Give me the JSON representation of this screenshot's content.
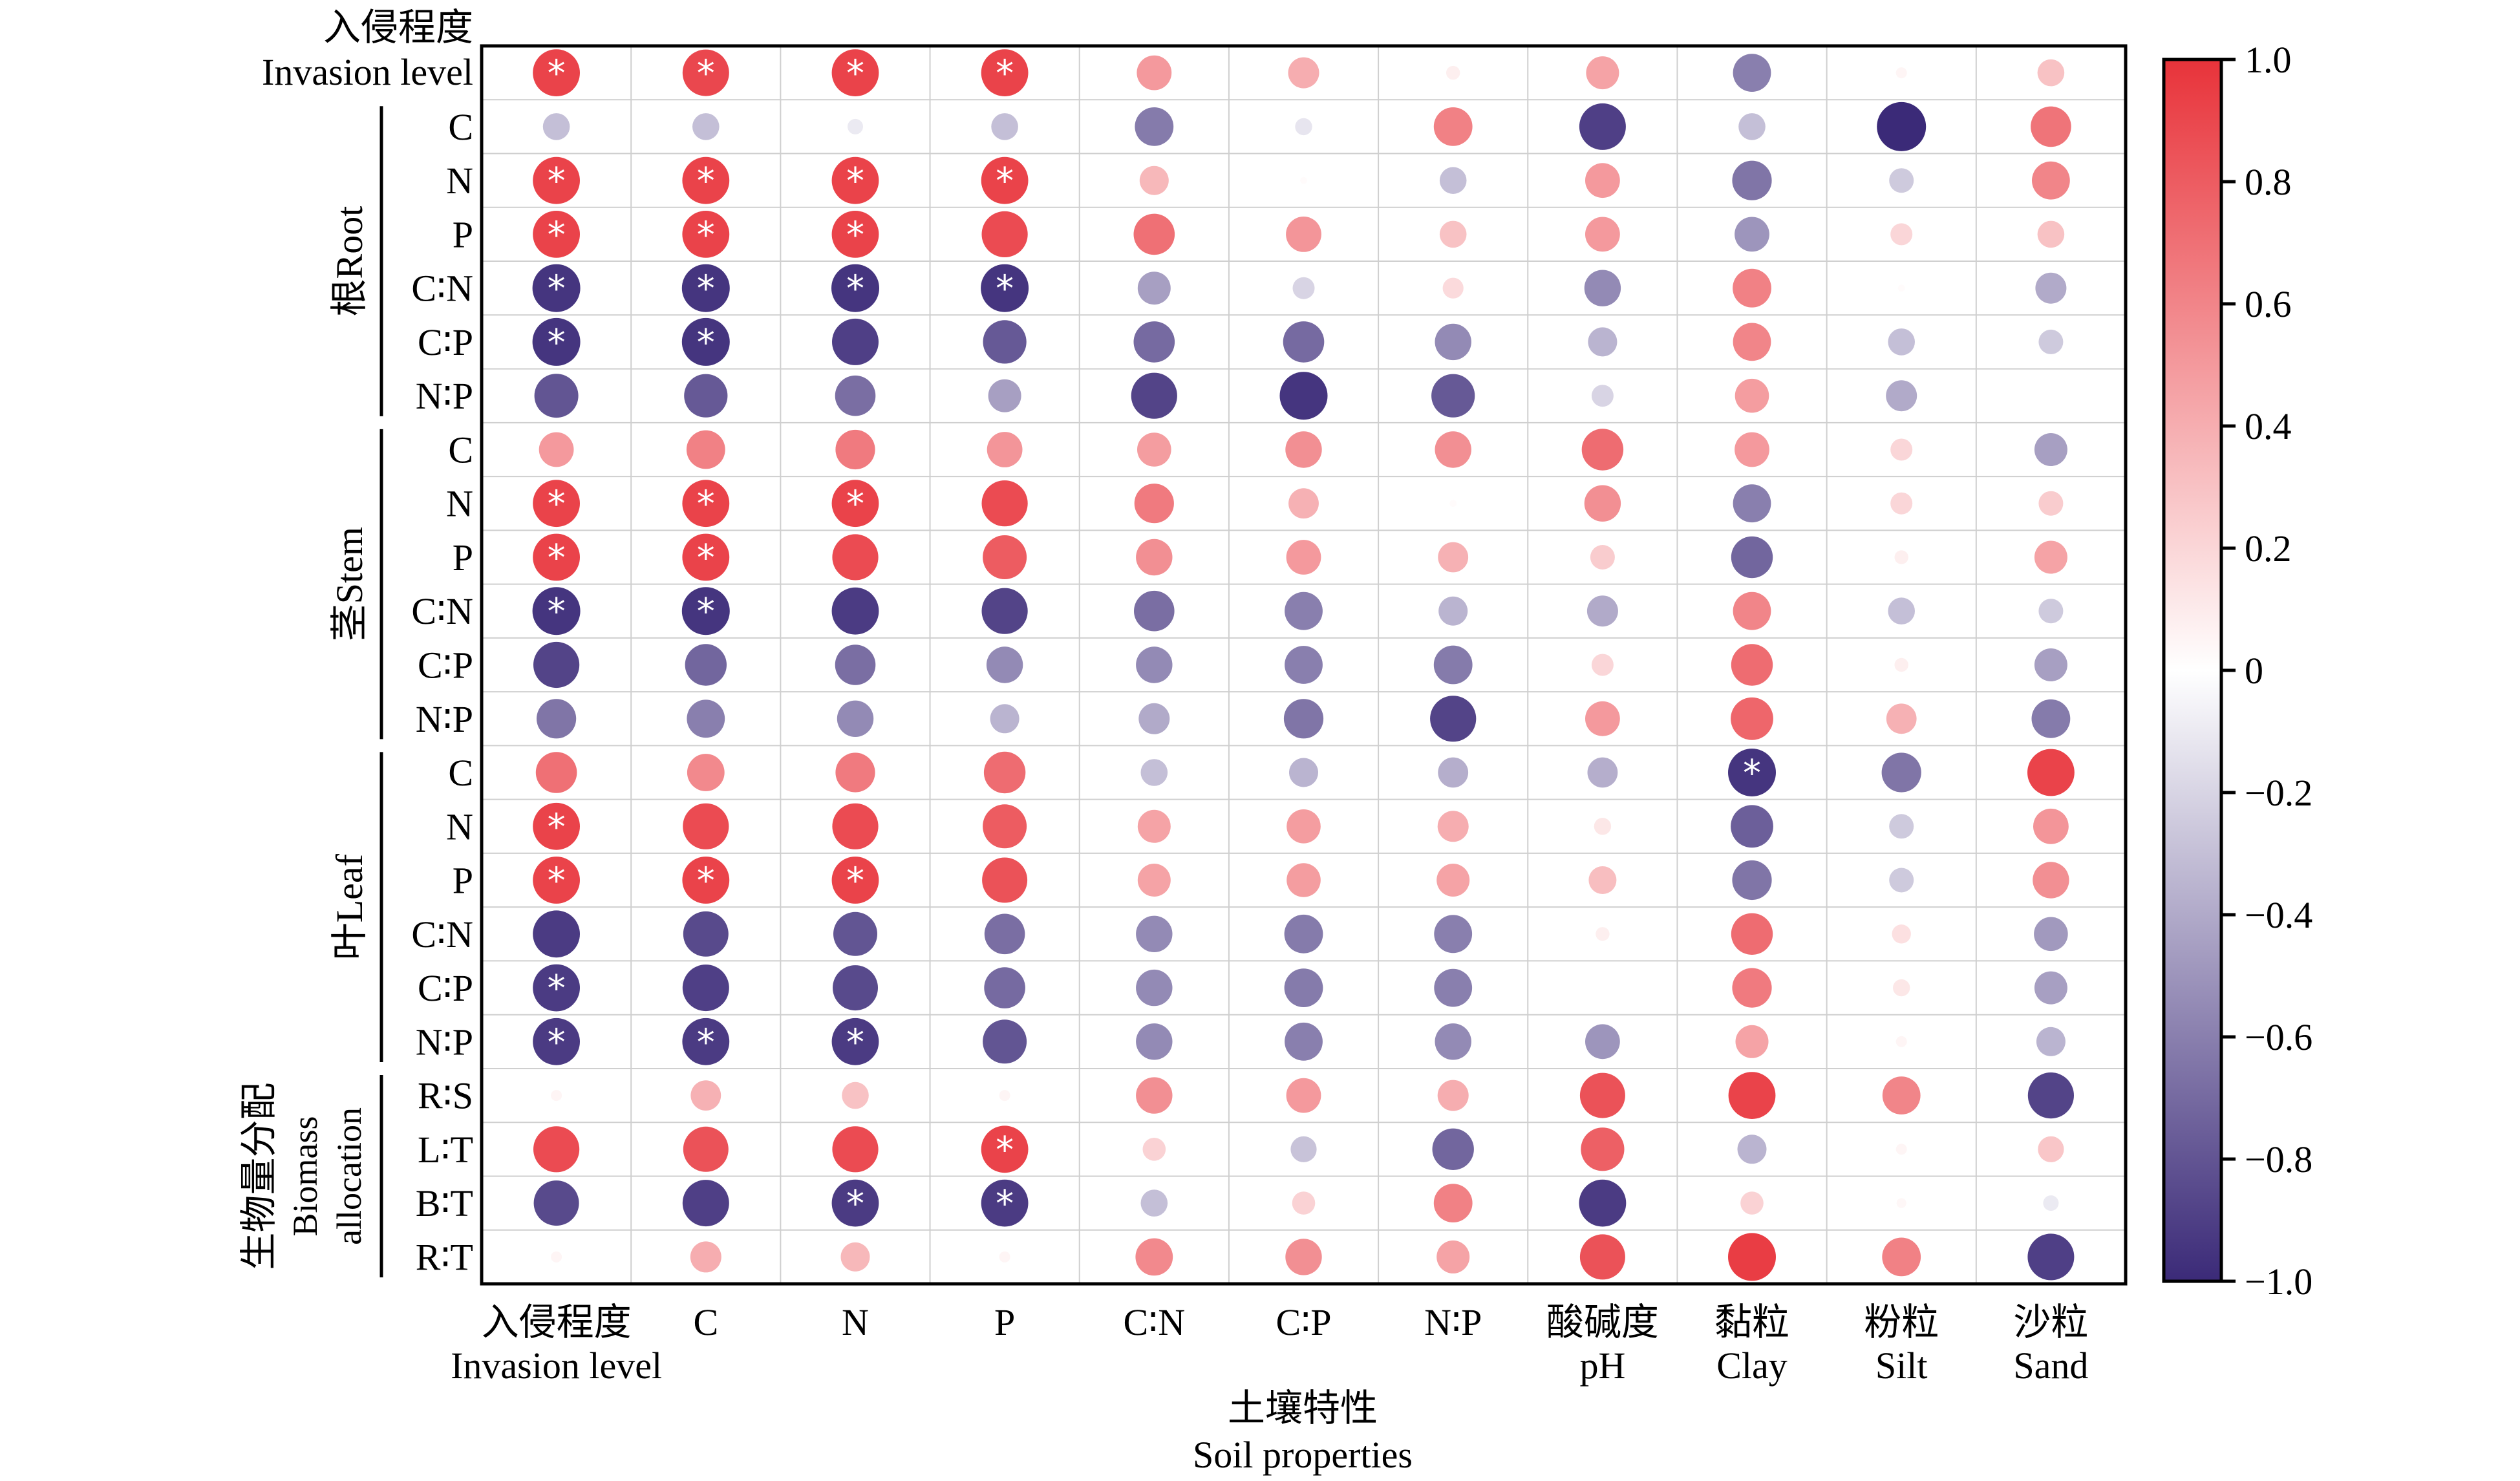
{
  "chart_data": {
    "type": "heatmap",
    "x_title_cn": "土壤特性",
    "x_title_en": "Soil properties",
    "columns": [
      {
        "cn": "入侵程度",
        "en": "Invasion level"
      },
      {
        "cn": "C",
        "en": ""
      },
      {
        "cn": "N",
        "en": ""
      },
      {
        "cn": "P",
        "en": ""
      },
      {
        "cn": "C∶N",
        "en": ""
      },
      {
        "cn": "C∶P",
        "en": ""
      },
      {
        "cn": "N∶P",
        "en": ""
      },
      {
        "cn": "酸碱度",
        "en": "pH"
      },
      {
        "cn": "黏粒",
        "en": "Clay"
      },
      {
        "cn": "粉粒",
        "en": "Silt"
      },
      {
        "cn": "沙粒",
        "en": "Sand"
      }
    ],
    "top_row": {
      "cn": "入侵程度",
      "en": "Invasion level"
    },
    "groups": [
      {
        "cn": "根",
        "en": "Root",
        "rows": [
          "C",
          "N",
          "P",
          "C∶N",
          "C∶P",
          "N∶P"
        ]
      },
      {
        "cn": "茎",
        "en": "Stem",
        "rows": [
          "C",
          "N",
          "P",
          "C∶N",
          "C∶P",
          "N∶P"
        ]
      },
      {
        "cn": "叶",
        "en": "Leaf",
        "rows": [
          "C",
          "N",
          "P",
          "C∶N",
          "C∶P",
          "N∶P"
        ]
      },
      {
        "cn": "生物量分配",
        "en1": "Biomass",
        "en2": "allocation",
        "rows": [
          "R∶S",
          "L∶T",
          "B∶T",
          "R∶T"
        ]
      }
    ],
    "values": [
      [
        0.92,
        0.9,
        0.92,
        0.92,
        0.5,
        0.4,
        0.08,
        0.45,
        -0.6,
        0.05,
        0.3
      ],
      [
        -0.3,
        -0.3,
        -0.1,
        -0.3,
        -0.62,
        -0.12,
        0.62,
        -0.9,
        -0.3,
        -1.0,
        0.68
      ],
      [
        0.92,
        0.92,
        0.92,
        0.92,
        0.35,
        0.02,
        -0.3,
        0.5,
        -0.65,
        -0.25,
        0.6
      ],
      [
        0.92,
        0.92,
        0.92,
        0.88,
        0.7,
        0.52,
        0.3,
        0.5,
        -0.5,
        0.2,
        0.3
      ],
      [
        -0.95,
        -0.95,
        -0.95,
        -0.95,
        -0.45,
        -0.2,
        0.18,
        -0.55,
        0.62,
        0.02,
        -0.4
      ],
      [
        -0.95,
        -0.95,
        -0.9,
        -0.78,
        -0.7,
        -0.7,
        -0.55,
        -0.35,
        0.6,
        -0.3,
        -0.25
      ],
      [
        -0.8,
        -0.78,
        -0.68,
        -0.45,
        -0.88,
        -0.95,
        -0.78,
        -0.2,
        0.48,
        -0.4,
        0.0
      ],
      [
        0.5,
        0.62,
        0.65,
        0.52,
        0.48,
        0.55,
        0.55,
        0.72,
        0.5,
        0.2,
        -0.45
      ],
      [
        0.92,
        0.92,
        0.92,
        0.88,
        0.65,
        0.38,
        0.02,
        0.55,
        -0.6,
        0.2,
        0.25
      ],
      [
        0.92,
        0.92,
        0.88,
        0.8,
        0.55,
        0.5,
        0.38,
        0.25,
        -0.72,
        0.08,
        0.45
      ],
      [
        -0.95,
        -0.95,
        -0.92,
        -0.88,
        -0.68,
        -0.6,
        -0.35,
        -0.4,
        0.6,
        -0.3,
        -0.25
      ],
      [
        -0.88,
        -0.72,
        -0.68,
        -0.55,
        -0.55,
        -0.6,
        -0.62,
        0.2,
        0.72,
        0.08,
        -0.45
      ],
      [
        -0.65,
        -0.6,
        -0.55,
        -0.35,
        -0.4,
        -0.65,
        -0.88,
        0.5,
        0.75,
        0.38,
        -0.62
      ],
      [
        0.7,
        0.58,
        0.65,
        0.72,
        -0.3,
        -0.35,
        -0.38,
        -0.38,
        -0.95,
        -0.65,
        0.92
      ],
      [
        0.92,
        0.88,
        0.88,
        0.8,
        0.45,
        0.48,
        0.4,
        0.12,
        -0.75,
        -0.25,
        0.52
      ],
      [
        0.92,
        0.92,
        0.92,
        0.85,
        0.45,
        0.48,
        0.45,
        0.32,
        -0.65,
        -0.25,
        0.55
      ],
      [
        -0.92,
        -0.85,
        -0.8,
        -0.68,
        -0.55,
        -0.62,
        -0.6,
        0.08,
        0.72,
        0.15,
        -0.48
      ],
      [
        -0.92,
        -0.9,
        -0.85,
        -0.7,
        -0.55,
        -0.62,
        -0.6,
        0.0,
        0.65,
        0.12,
        -0.45
      ],
      [
        -0.92,
        -0.92,
        -0.92,
        -0.8,
        -0.55,
        -0.6,
        -0.55,
        -0.5,
        0.45,
        0.05,
        -0.35
      ],
      [
        0.05,
        0.38,
        0.3,
        0.05,
        0.55,
        0.5,
        0.4,
        0.85,
        0.92,
        0.6,
        -0.88
      ],
      [
        0.88,
        0.85,
        0.88,
        0.92,
        0.22,
        -0.28,
        -0.72,
        0.78,
        -0.35,
        0.05,
        0.28
      ],
      [
        -0.85,
        -0.9,
        -0.92,
        -0.92,
        -0.3,
        0.22,
        0.62,
        -0.92,
        0.22,
        0.04,
        -0.1
      ],
      [
        0.05,
        0.4,
        0.35,
        0.05,
        0.58,
        0.55,
        0.45,
        0.85,
        0.95,
        0.62,
        -0.9
      ]
    ],
    "significant": [
      [
        0,
        0
      ],
      [
        0,
        1
      ],
      [
        0,
        2
      ],
      [
        0,
        3
      ],
      [
        2,
        0
      ],
      [
        2,
        1
      ],
      [
        2,
        2
      ],
      [
        2,
        3
      ],
      [
        3,
        0
      ],
      [
        3,
        1
      ],
      [
        3,
        2
      ],
      [
        4,
        0
      ],
      [
        4,
        1
      ],
      [
        4,
        2
      ],
      [
        4,
        3
      ],
      [
        5,
        0
      ],
      [
        5,
        1
      ],
      [
        8,
        0
      ],
      [
        8,
        1
      ],
      [
        8,
        2
      ],
      [
        9,
        0
      ],
      [
        9,
        1
      ],
      [
        10,
        0
      ],
      [
        10,
        1
      ],
      [
        13,
        8
      ],
      [
        14,
        0
      ],
      [
        15,
        0
      ],
      [
        15,
        1
      ],
      [
        15,
        2
      ],
      [
        17,
        0
      ],
      [
        18,
        0
      ],
      [
        18,
        1
      ],
      [
        18,
        2
      ],
      [
        20,
        3
      ],
      [
        21,
        2
      ],
      [
        21,
        3
      ]
    ],
    "significance_marker": "*",
    "colorbar": {
      "range": [
        -1.0,
        1.0
      ],
      "ticks": [
        "1.0",
        "0.8",
        "0.6",
        "0.4",
        "0.2",
        "0",
        "−0.2",
        "−0.4",
        "−0.6",
        "−0.8",
        "−1.0"
      ],
      "low_color": "#3b2a78",
      "mid_color": "#ffffff",
      "high_color": "#e8333a"
    }
  }
}
